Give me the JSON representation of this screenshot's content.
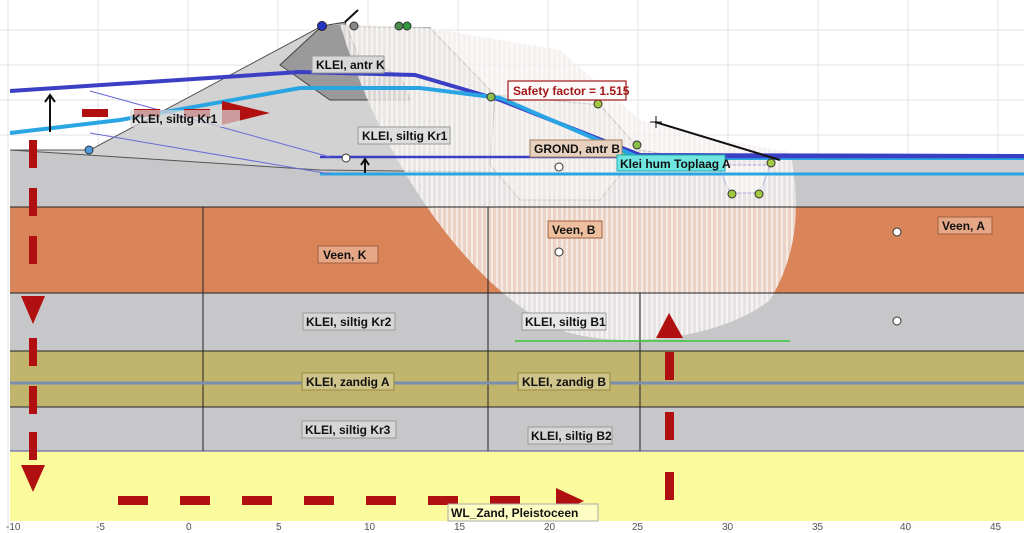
{
  "safety_factor_label": "Safety factor = 1.515",
  "x_ticks": [
    "-10",
    "-5",
    "0",
    "5",
    "10",
    "15",
    "20",
    "25",
    "30",
    "35",
    "40",
    "45"
  ],
  "layers": {
    "klei_antr_k": "KLEI, antr K",
    "klei_siltig_kr1_left": "KLEI, siltig Kr1",
    "klei_siltig_kr1": "KLEI, siltig Kr1",
    "grond_antr_b": "GROND, antr B",
    "klei_hum_toplaag_a": "Klei hum Toplaag A",
    "veen_k": "Veen, K",
    "veen_b": "Veen, B",
    "veen_a": "Veen, A",
    "klei_siltig_kr2": "KLEI, siltig Kr2",
    "klei_siltig_b1": "KLEI, siltig B1",
    "klei_zandig_a": "KLEI, zandig A",
    "klei_zandig_b": "KLEI, zandig B",
    "klei_siltig_kr3": "KLEI, siltig Kr3",
    "klei_siltig_b2": "KLEI, siltig B2",
    "wl_zand_pleistoceen": "WL_Zand, Pleistoceen"
  },
  "colors": {
    "grey_layer": "#c7c7c9",
    "dike_core": "#d2d2d2",
    "dike_top": "#9a9a9a",
    "veen": "#da8459",
    "zandig": "#c1b46d",
    "zand_pleistoceen": "#fbfb9e",
    "slip_circle": "#f0ece9",
    "phreatic_dark": "#3b3fc4",
    "phreatic_light": "#29a5e4",
    "arrows": "#b01010",
    "safety_box_border": "#a01818",
    "safety_text": "#a01818"
  }
}
